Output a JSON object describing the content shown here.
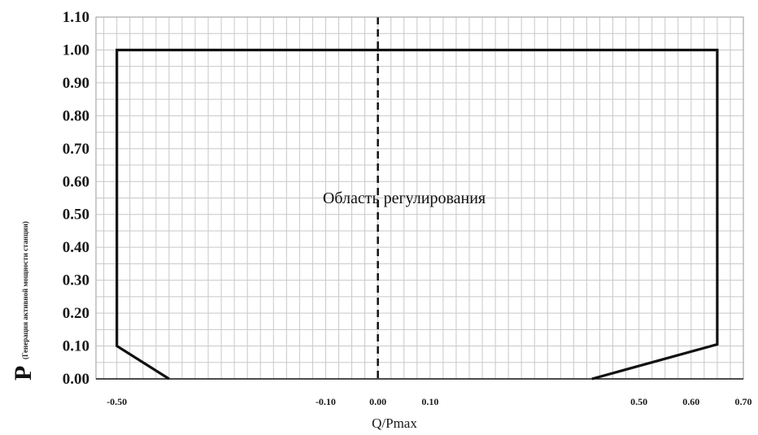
{
  "chart_data": {
    "type": "line",
    "title": "",
    "xlabel": "Q/Pmax",
    "ylabel": "P",
    "ylabel_sub": "(Генерация активной мощности станции)",
    "annotation": "Область регулирования",
    "xlim": [
      -0.54,
      0.7
    ],
    "ylim": [
      0,
      1.1
    ],
    "grid": true,
    "y_ticks": [
      "0.00",
      "0.10",
      "0.20",
      "0.30",
      "0.40",
      "0.50",
      "0.60",
      "0.70",
      "0.80",
      "0.90",
      "1.00",
      "1.10"
    ],
    "x_ticks": [
      {
        "value": -0.5,
        "label": "-0.50"
      },
      {
        "value": -0.1,
        "label": "-0.10"
      },
      {
        "value": 0.0,
        "label": "0.00"
      },
      {
        "value": 0.1,
        "label": "0.10"
      },
      {
        "value": 0.5,
        "label": "0.50"
      },
      {
        "value": 0.6,
        "label": "0.60"
      },
      {
        "value": 0.7,
        "label": "0.70"
      }
    ],
    "series": [
      {
        "x": [
          -0.4,
          -0.5,
          -0.5,
          0.65,
          0.65,
          0.41
        ],
        "y": [
          0.0,
          0.1,
          1.0,
          1.0,
          0.105,
          0.0
        ]
      }
    ],
    "reference_lines": [
      {
        "axis": "x",
        "value": 0.0,
        "style": "dashed"
      }
    ],
    "colors": {
      "line": "#111111",
      "grid": "#c8c8c8",
      "axis": "#111111"
    }
  }
}
